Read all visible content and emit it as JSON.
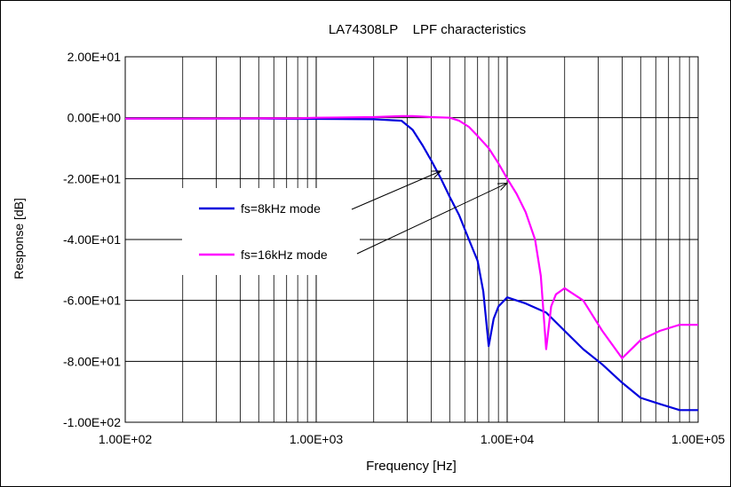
{
  "chart_data": {
    "type": "line",
    "title": "LA74308LP    LPF characteristics",
    "xlabel": "Frequency [Hz]",
    "ylabel": "Response [dB]",
    "xscale": "log",
    "xlim": [
      100,
      100000
    ],
    "ylim": [
      -100,
      20
    ],
    "grid": true,
    "xtick_values": [
      100,
      1000,
      10000,
      100000
    ],
    "xtick_labels": [
      "1.00E+02",
      "1.00E+03",
      "1.00E+04",
      "1.00E+05"
    ],
    "ytick_values": [
      20,
      0,
      -20,
      -40,
      -60,
      -80,
      -100
    ],
    "ytick_labels": [
      "2.00E+01",
      "0.00E+00",
      "-2.00E+01",
      "-4.00E+01",
      "-6.00E+01",
      "-8.00E+01",
      "-1.00E+02"
    ],
    "legend_placement": "inside-left",
    "series": [
      {
        "name": "fs=8kHz mode",
        "color": "#0000dd",
        "points": [
          [
            100,
            -0.3
          ],
          [
            200,
            -0.3
          ],
          [
            500,
            -0.3
          ],
          [
            800,
            -0.4
          ],
          [
            1000,
            -0.4
          ],
          [
            2000,
            -0.5
          ],
          [
            2800,
            -1.0
          ],
          [
            3200,
            -4.0
          ],
          [
            3600,
            -9.0
          ],
          [
            4000,
            -14.0
          ],
          [
            4500,
            -20.0
          ],
          [
            5000,
            -26.0
          ],
          [
            5600,
            -32.0
          ],
          [
            6300,
            -40.0
          ],
          [
            7000,
            -47.0
          ],
          [
            7500,
            -57.0
          ],
          [
            8000,
            -75.0
          ],
          [
            8500,
            -66.0
          ],
          [
            9000,
            -62.0
          ],
          [
            10000,
            -59.0
          ],
          [
            12500,
            -61.0
          ],
          [
            16000,
            -64.0
          ],
          [
            20000,
            -70.0
          ],
          [
            25000,
            -76.0
          ],
          [
            31500,
            -81.0
          ],
          [
            40000,
            -87.0
          ],
          [
            50000,
            -92.0
          ],
          [
            63000,
            -94.0
          ],
          [
            80000,
            -96.0
          ],
          [
            100000,
            -96.0
          ]
        ]
      },
      {
        "name": "fs=16kHz mode",
        "color": "#ff00ff",
        "points": [
          [
            100,
            -0.3
          ],
          [
            200,
            -0.3
          ],
          [
            500,
            -0.2
          ],
          [
            800,
            -0.2
          ],
          [
            1000,
            0.0
          ],
          [
            2000,
            0.2
          ],
          [
            2800,
            0.5
          ],
          [
            3200,
            0.5
          ],
          [
            4000,
            0.2
          ],
          [
            5000,
            0.0
          ],
          [
            5600,
            -1.0
          ],
          [
            6300,
            -3.0
          ],
          [
            7000,
            -6.0
          ],
          [
            8000,
            -10.0
          ],
          [
            9000,
            -15.0
          ],
          [
            10000,
            -20.0
          ],
          [
            11200,
            -25.0
          ],
          [
            12500,
            -31.0
          ],
          [
            14000,
            -40.0
          ],
          [
            15000,
            -52.0
          ],
          [
            16000,
            -76.0
          ],
          [
            17000,
            -62.0
          ],
          [
            18000,
            -58.0
          ],
          [
            20000,
            -56.0
          ],
          [
            25000,
            -60.0
          ],
          [
            31500,
            -70.0
          ],
          [
            40000,
            -79.0
          ],
          [
            50000,
            -73.0
          ],
          [
            63000,
            -70.0
          ],
          [
            80000,
            -68.0
          ],
          [
            100000,
            -68.0
          ]
        ]
      }
    ]
  }
}
